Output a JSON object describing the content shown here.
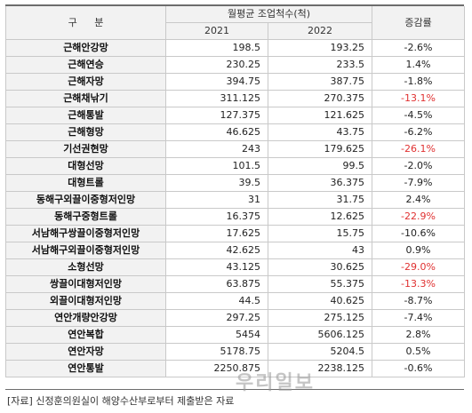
{
  "header": {
    "category": "구 분",
    "group_title": "월평균 조업척수(척)",
    "year_2021": "2021",
    "year_2022": "2022",
    "change": "증감률"
  },
  "rows": [
    {
      "name": "근해안강망",
      "v2021": "198.5",
      "v2022": "193.25",
      "rate": "-2.6%",
      "highlight": false
    },
    {
      "name": "근해연승",
      "v2021": "230.25",
      "v2022": "233.5",
      "rate": "1.4%",
      "highlight": false
    },
    {
      "name": "근해자망",
      "v2021": "394.75",
      "v2022": "387.75",
      "rate": "-1.8%",
      "highlight": false
    },
    {
      "name": "근해채낚기",
      "v2021": "311.125",
      "v2022": "270.375",
      "rate": "-13.1%",
      "highlight": true
    },
    {
      "name": "근해통발",
      "v2021": "127.375",
      "v2022": "121.625",
      "rate": "-4.5%",
      "highlight": false
    },
    {
      "name": "근해형망",
      "v2021": "46.625",
      "v2022": "43.75",
      "rate": "-6.2%",
      "highlight": false
    },
    {
      "name": "기선권현망",
      "v2021": "243",
      "v2022": "179.625",
      "rate": "-26.1%",
      "highlight": true
    },
    {
      "name": "대형선망",
      "v2021": "101.5",
      "v2022": "99.5",
      "rate": "-2.0%",
      "highlight": false
    },
    {
      "name": "대형트롤",
      "v2021": "39.5",
      "v2022": "36.375",
      "rate": "-7.9%",
      "highlight": false
    },
    {
      "name": "동해구외끌이중형저인망",
      "v2021": "31",
      "v2022": "31.75",
      "rate": "2.4%",
      "highlight": false
    },
    {
      "name": "동해구중형트롤",
      "v2021": "16.375",
      "v2022": "12.625",
      "rate": "-22.9%",
      "highlight": true
    },
    {
      "name": "서남해구쌍끌이중형저인망",
      "v2021": "17.625",
      "v2022": "15.75",
      "rate": "-10.6%",
      "highlight": false
    },
    {
      "name": "서남해구외끌이중형저인망",
      "v2021": "42.625",
      "v2022": "43",
      "rate": "0.9%",
      "highlight": false
    },
    {
      "name": "소형선망",
      "v2021": "43.125",
      "v2022": "30.625",
      "rate": "-29.0%",
      "highlight": true
    },
    {
      "name": "쌍끌이대형저인망",
      "v2021": "63.875",
      "v2022": "55.375",
      "rate": "-13.3%",
      "highlight": true
    },
    {
      "name": "외끌이대형저인망",
      "v2021": "44.5",
      "v2022": "40.625",
      "rate": "-8.7%",
      "highlight": false
    },
    {
      "name": "연안개량안강망",
      "v2021": "297.25",
      "v2022": "275.125",
      "rate": "-7.4%",
      "highlight": false
    },
    {
      "name": "연안복합",
      "v2021": "5454",
      "v2022": "5606.125",
      "rate": "2.8%",
      "highlight": false
    },
    {
      "name": "연안자망",
      "v2021": "5178.75",
      "v2022": "5204.5",
      "rate": "0.5%",
      "highlight": false
    },
    {
      "name": "연안통발",
      "v2021": "2250.875",
      "v2022": "2238.125",
      "rate": "-0.6%",
      "highlight": false
    }
  ],
  "source": "[자료] 신정훈의원실이 해양수산부로부터 제출받은 자료",
  "watermark": "우리일보",
  "colors": {
    "highlight": "#e03131",
    "header_bg": "#f2f2f2"
  }
}
